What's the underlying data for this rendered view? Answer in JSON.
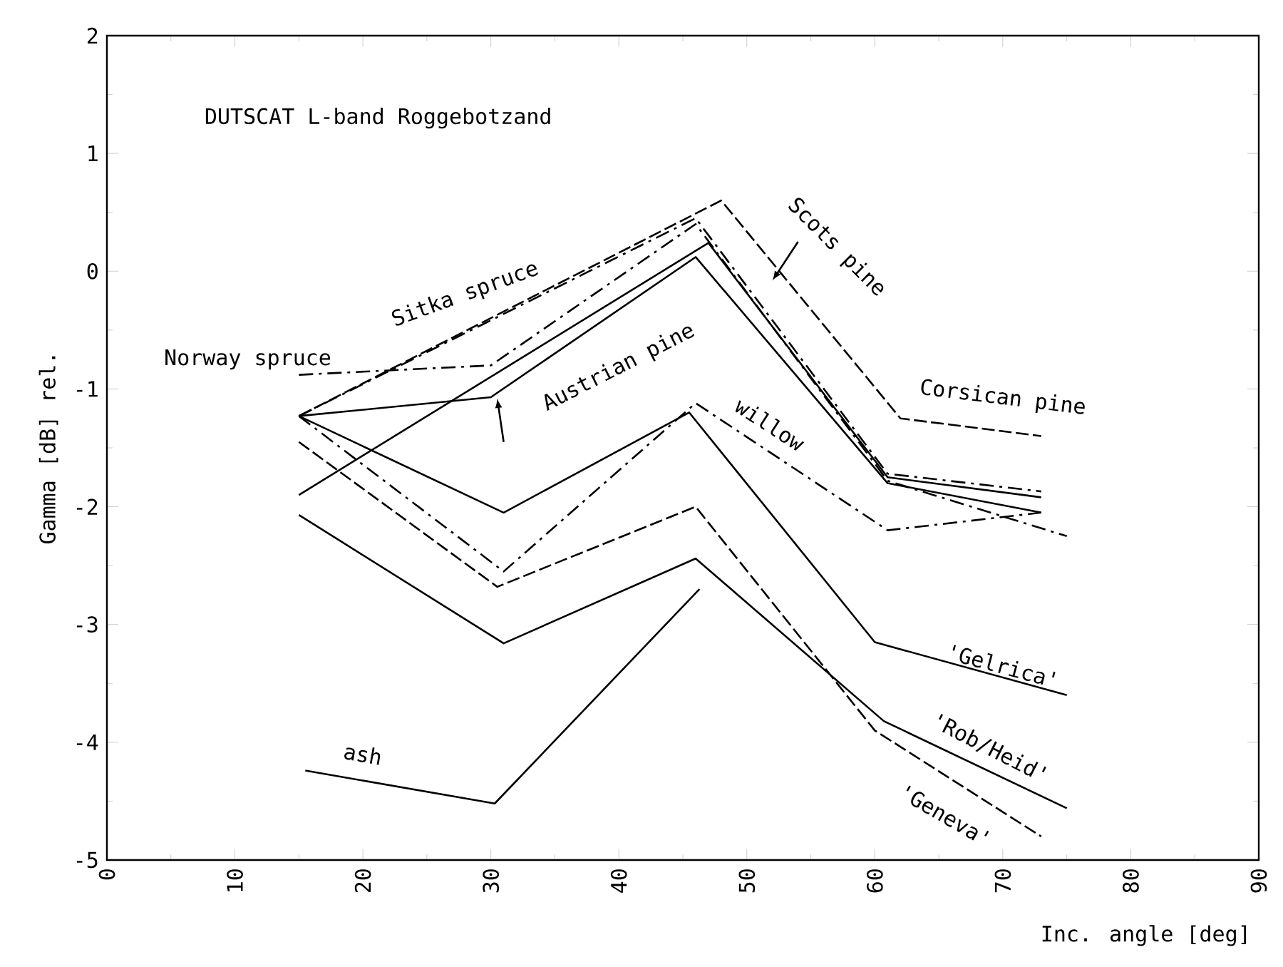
{
  "chart_data": {
    "type": "line",
    "title": "DUTSCAT L-band   Roggebotzand",
    "xlabel": "Inc. angle [deg]",
    "ylabel": "Gamma [dB] rel.",
    "xlim": [
      0,
      90
    ],
    "xticks": [
      0,
      10,
      20,
      30,
      40,
      50,
      60,
      70,
      80,
      90
    ],
    "ylim": [
      -5,
      2
    ],
    "yticks": [
      -5,
      -4,
      -3,
      -2,
      -1,
      0,
      1,
      2
    ],
    "grid": false,
    "legend": false,
    "marker": "none",
    "series": [
      {
        "name": "Norway spruce",
        "color": "#000000",
        "line_style": "dashdot",
        "x": [
          15,
          30,
          46,
          61,
          75
        ],
        "values": [
          -0.88,
          -0.8,
          0.4,
          -1.78,
          -2.25
        ]
      },
      {
        "name": "Sitka spruce",
        "color": "#000000",
        "line_style": "dashdot",
        "x": [
          15,
          46,
          61,
          73
        ],
        "values": [
          -1.23,
          0.45,
          -1.72,
          -1.87
        ]
      },
      {
        "name": "Scots pine",
        "color": "#000000",
        "line_style": "solid",
        "x": [
          15,
          47,
          61,
          73
        ],
        "values": [
          -1.9,
          0.24,
          -1.75,
          -1.92
        ]
      },
      {
        "name": "Austrian pine",
        "color": "#000000",
        "line_style": "solid",
        "x": [
          15,
          30,
          46,
          61,
          73
        ],
        "values": [
          -1.23,
          -1.07,
          0.12,
          -1.8,
          -2.05
        ]
      },
      {
        "name": "Corsican pine",
        "color": "#000000",
        "line_style": "dashed",
        "x": [
          15,
          48,
          62,
          73
        ],
        "values": [
          -1.23,
          0.6,
          -1.25,
          -1.4
        ]
      },
      {
        "name": "willow",
        "color": "#000000",
        "line_style": "dashdot",
        "x": [
          15,
          31,
          46,
          61,
          73
        ],
        "values": [
          -1.23,
          -2.55,
          -1.12,
          -2.2,
          -2.05
        ]
      },
      {
        "name": "'Gelrica'",
        "color": "#000000",
        "line_style": "solid",
        "x": [
          15,
          31,
          45.5,
          60,
          75
        ],
        "values": [
          -1.23,
          -2.05,
          -1.2,
          -3.15,
          -3.6
        ]
      },
      {
        "name": "'Geneva'",
        "color": "#000000",
        "line_style": "dashed",
        "x": [
          15,
          30.5,
          46,
          60,
          73
        ],
        "values": [
          -1.45,
          -2.68,
          -2.0,
          -3.9,
          -4.8
        ]
      },
      {
        "name": "'Rob/Heid'",
        "color": "#000000",
        "line_style": "solid",
        "x": [
          15,
          31,
          46,
          60.7,
          75
        ],
        "values": [
          -2.07,
          -3.16,
          -2.44,
          -3.82,
          -4.56
        ]
      },
      {
        "name": "ash",
        "color": "#000000",
        "line_style": "solid",
        "x": [
          15.5,
          30.3,
          46.3
        ],
        "values": [
          -4.24,
          -4.52,
          -2.7
        ]
      }
    ]
  }
}
